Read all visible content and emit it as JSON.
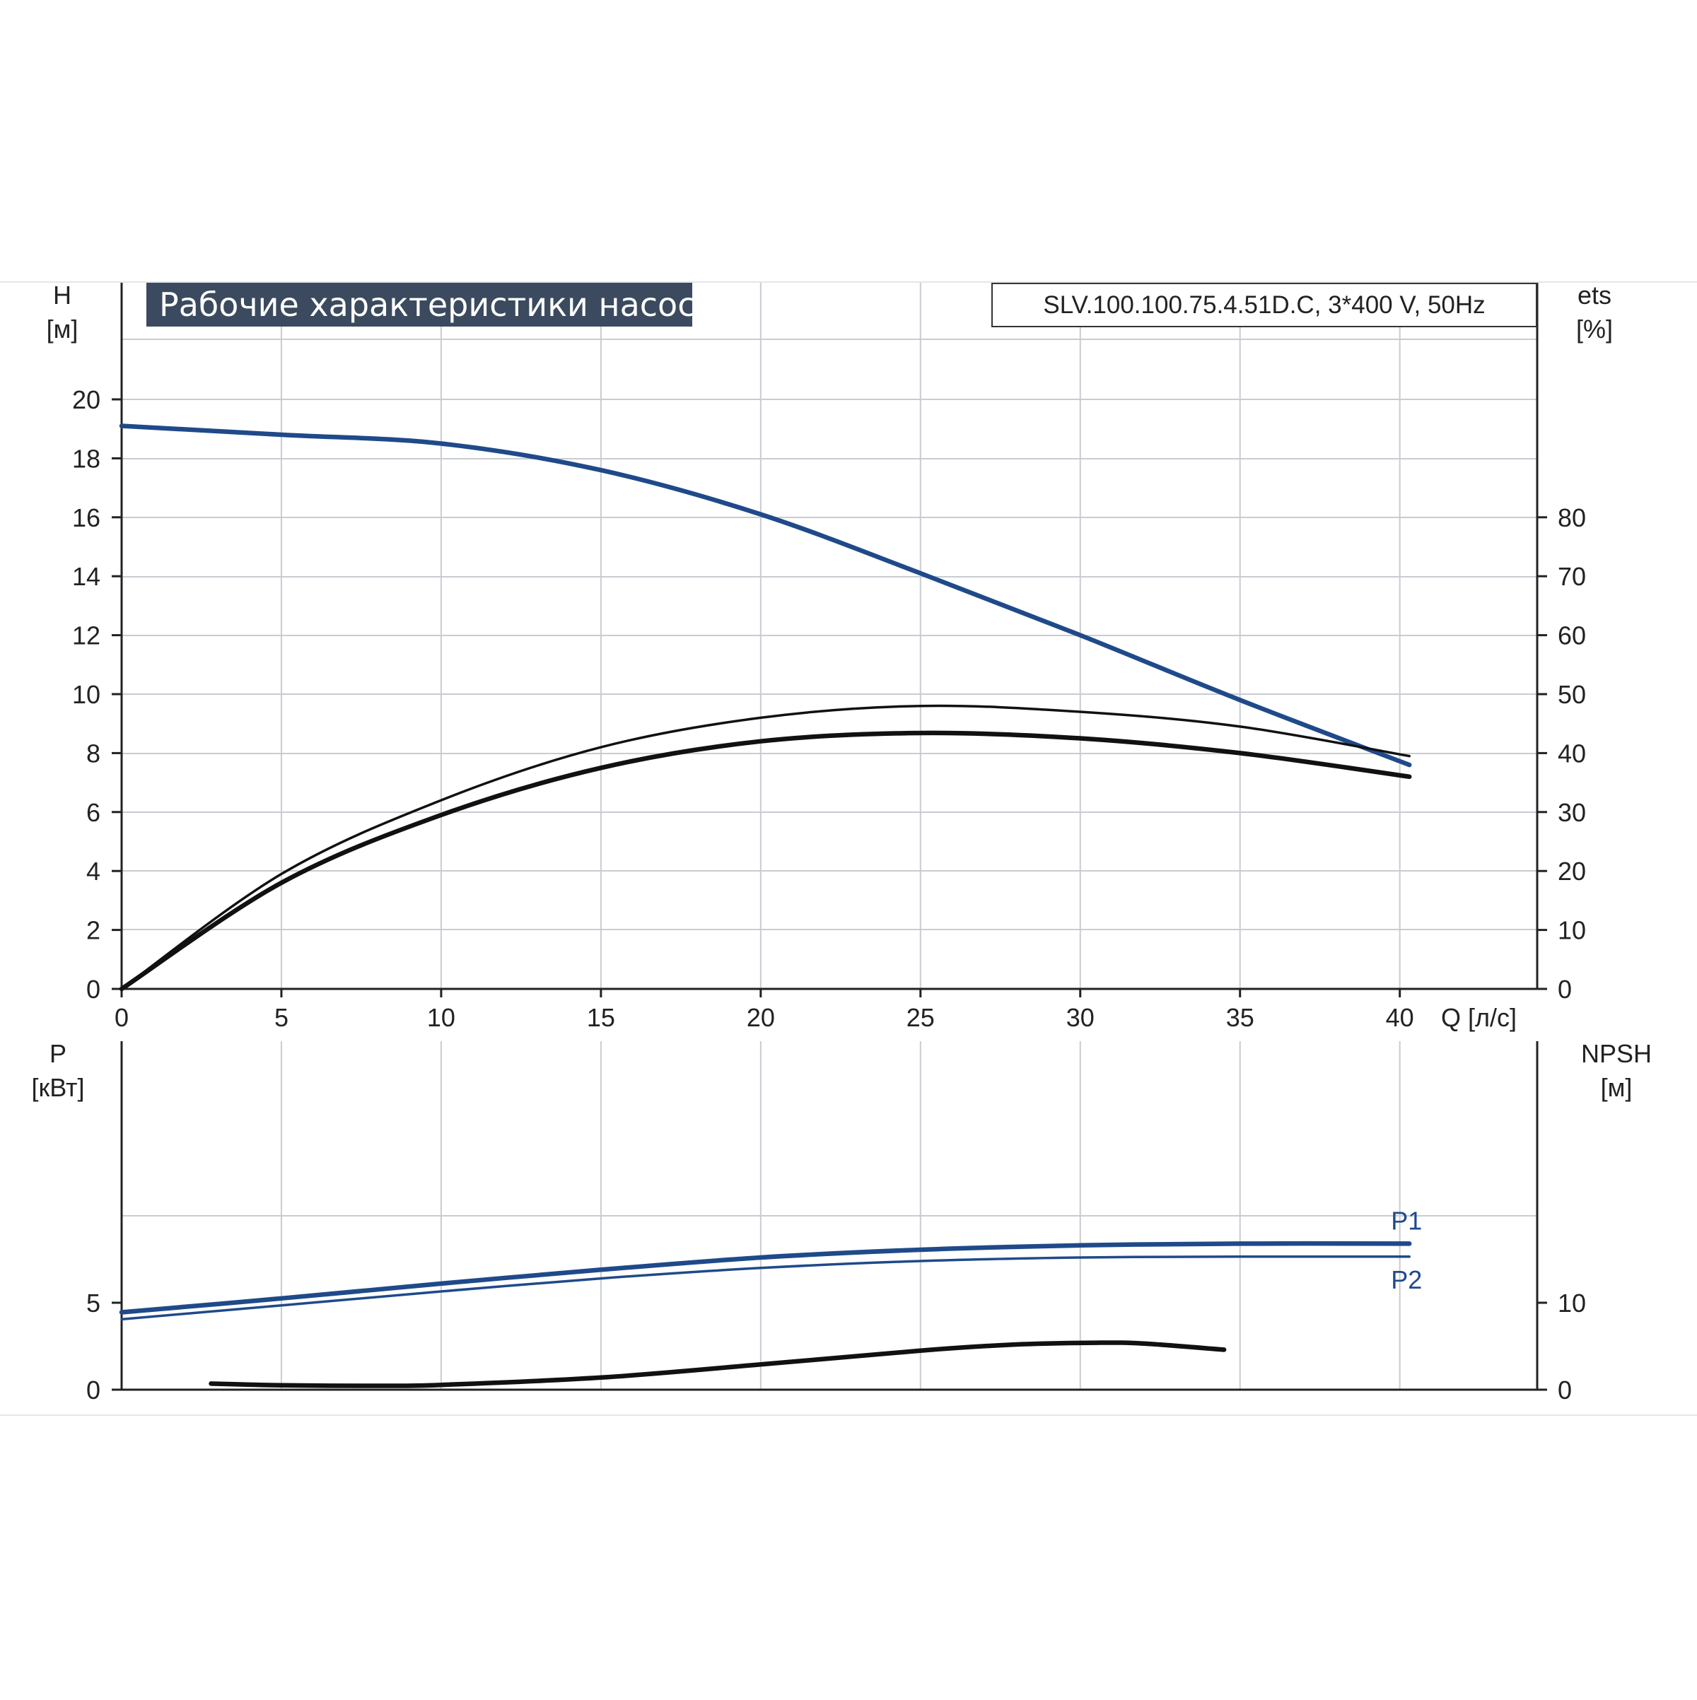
{
  "title": "Рабочие характеристики насоса",
  "model": "SLV.100.100.75.4.51D.C, 3*400 V, 50Hz",
  "colors": {
    "grid": "#c8ccd2",
    "axis": "#222222",
    "blue": "#1f4a8a",
    "black": "#111111",
    "title_bg": "#3b4a5e"
  },
  "chart_data": [
    {
      "type": "line",
      "x_label": "Q [л/с]",
      "x_ticks": [
        "0",
        "5",
        "10",
        "15",
        "20",
        "25",
        "30",
        "35",
        "40"
      ],
      "xlim": [
        0,
        44.3
      ],
      "y_left": {
        "label_top": "H",
        "label_bottom": "[м]",
        "ticks": [
          "0",
          "2",
          "4",
          "6",
          "8",
          "10",
          "12",
          "14",
          "16",
          "18",
          "20"
        ],
        "ylim": [
          0,
          20
        ]
      },
      "y_right": {
        "label_top": "ets",
        "label_bottom": "[%]",
        "ticks": [
          "0",
          "10",
          "20",
          "30",
          "40",
          "50",
          "60",
          "70",
          "80"
        ],
        "ylim": [
          0,
          100
        ]
      },
      "grid": true,
      "series": [
        {
          "axis": "left",
          "color": "blue",
          "style": "thick",
          "x": [
            0,
            5,
            10,
            15,
            20,
            25,
            30,
            35,
            40.3
          ],
          "y": [
            19.1,
            18.8,
            18.5,
            17.6,
            16.1,
            14.1,
            12.0,
            9.8,
            7.6
          ]
        },
        {
          "axis": "right",
          "color": "black",
          "style": "thin",
          "x": [
            0,
            5,
            10,
            15,
            20,
            25,
            30,
            35,
            40.3
          ],
          "y": [
            0,
            19.5,
            32,
            41,
            46,
            48,
            47,
            44.5,
            39.5
          ]
        },
        {
          "axis": "right",
          "color": "black",
          "style": "thick",
          "x": [
            0,
            5,
            10,
            15,
            20,
            25,
            30,
            35,
            40.3
          ],
          "y": [
            0,
            18,
            29.5,
            37.5,
            42,
            43.4,
            42.5,
            40,
            36
          ]
        }
      ]
    },
    {
      "type": "line",
      "x_ticks": [],
      "xlim": [
        0,
        44.3
      ],
      "y_left": {
        "label_top": "P",
        "label_bottom": "[кВт]",
        "ticks": [
          "0",
          "5"
        ],
        "ylim": [
          0,
          10
        ]
      },
      "y_right": {
        "label_top": "NPSH",
        "label_bottom": "[м]",
        "ticks": [
          "0",
          "10"
        ],
        "ylim": [
          0,
          20
        ]
      },
      "grid": true,
      "series": [
        {
          "name": "P1",
          "axis": "left",
          "color": "blue",
          "style": "thick",
          "x": [
            0,
            5,
            10,
            15,
            20,
            25,
            30,
            35,
            40.3
          ],
          "y": [
            4.45,
            5.25,
            6.1,
            6.9,
            7.6,
            8.05,
            8.3,
            8.4,
            8.4
          ]
        },
        {
          "name": "P2",
          "axis": "left",
          "color": "blue",
          "style": "thin",
          "x": [
            0,
            5,
            10,
            15,
            20,
            25,
            30,
            35,
            40.3
          ],
          "y": [
            4.05,
            4.85,
            5.65,
            6.4,
            7.0,
            7.4,
            7.6,
            7.65,
            7.65
          ]
        },
        {
          "axis": "right",
          "color": "black",
          "style": "thick",
          "x": [
            2.8,
            5,
            8,
            10,
            15,
            20,
            25,
            28,
            30.5,
            32,
            34.5
          ],
          "y": [
            0.7,
            0.5,
            0.45,
            0.55,
            1.4,
            2.9,
            4.5,
            5.2,
            5.4,
            5.3,
            4.6
          ]
        }
      ]
    }
  ]
}
